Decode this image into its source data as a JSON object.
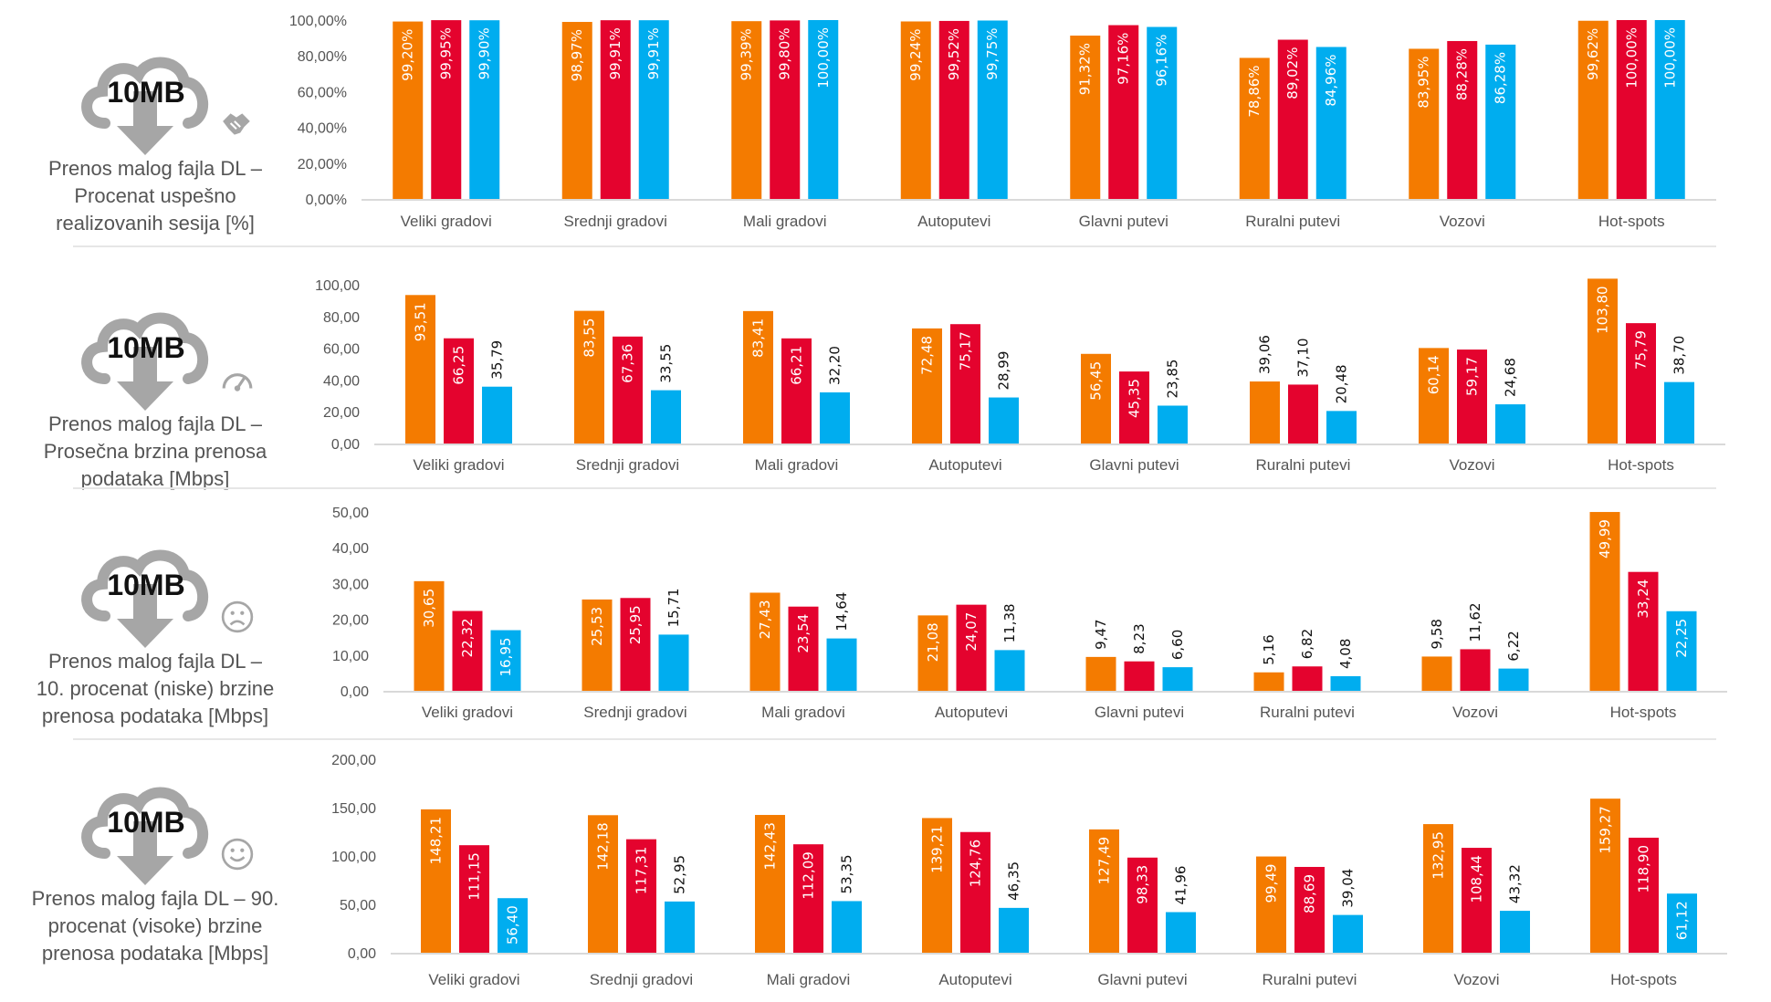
{
  "colors": {
    "series1": "#F47B00",
    "series2": "#E4032E",
    "series3": "#00ADEF",
    "axis": "#d9d9d9",
    "icon": "#a6a6a6"
  },
  "panels": [
    {
      "badge": "10MB",
      "icon": "handshake-icon",
      "lines": [
        "Prenos malog fajla DL –",
        "Procenat uspešno",
        "realizovanih sesija [%]"
      ]
    },
    {
      "badge": "10MB",
      "icon": "speedometer-icon",
      "lines": [
        "Prenos malog fajla DL –",
        "Prosečna brzina prenosa",
        "podataka [Mbps]"
      ]
    },
    {
      "badge": "10MB",
      "icon": "sad-face-icon",
      "lines": [
        "Prenos malog fajla DL –",
        "10. procenat (niske) brzine",
        "prenosa podataka [Mbps]"
      ]
    },
    {
      "badge": "10MB",
      "icon": "smiley-face-icon",
      "lines": [
        "Prenos malog fajla DL – 90.",
        "procenat (visoke) brzine",
        "prenosa podataka [Mbps]"
      ]
    }
  ],
  "chart_data": [
    {
      "type": "bar",
      "categories": [
        "Veliki gradovi",
        "Srednji gradovi",
        "Mali gradovi",
        "Autoputevi",
        "Glavni putevi",
        "Ruralni putevi",
        "Vozovi",
        "Hot-spots"
      ],
      "ylim": [
        0,
        100
      ],
      "yticks": [
        "0,00%",
        "20,00%",
        "40,00%",
        "60,00%",
        "80,00%",
        "100,00%"
      ],
      "value_suffix": "%",
      "series": [
        {
          "values": [
            99.2,
            98.97,
            99.39,
            99.24,
            91.32,
            78.86,
            83.95,
            99.62
          ]
        },
        {
          "values": [
            99.95,
            99.91,
            99.8,
            99.52,
            97.16,
            89.02,
            88.28,
            100.0
          ]
        },
        {
          "values": [
            99.9,
            99.91,
            100.0,
            99.75,
            96.16,
            84.96,
            86.28,
            100.0
          ]
        }
      ]
    },
    {
      "type": "bar",
      "categories": [
        "Veliki gradovi",
        "Srednji gradovi",
        "Mali gradovi",
        "Autoputevi",
        "Glavni putevi",
        "Ruralni putevi",
        "Vozovi",
        "Hot-spots"
      ],
      "ylim": [
        0,
        100
      ],
      "yticks": [
        "0,00",
        "20,00",
        "40,00",
        "60,00",
        "80,00",
        "100,00"
      ],
      "value_suffix": "",
      "series": [
        {
          "values": [
            93.51,
            83.55,
            83.41,
            72.48,
            56.45,
            39.06,
            60.14,
            103.8
          ]
        },
        {
          "values": [
            66.25,
            67.36,
            66.21,
            75.17,
            45.35,
            37.1,
            59.17,
            75.79
          ]
        },
        {
          "values": [
            35.79,
            33.55,
            32.2,
            28.99,
            23.85,
            20.48,
            24.68,
            38.7
          ]
        }
      ]
    },
    {
      "type": "bar",
      "categories": [
        "Veliki gradovi",
        "Srednji gradovi",
        "Mali gradovi",
        "Autoputevi",
        "Glavni putevi",
        "Ruralni putevi",
        "Vozovi",
        "Hot-spots"
      ],
      "ylim": [
        0,
        50
      ],
      "yticks": [
        "0,00",
        "10,00",
        "20,00",
        "30,00",
        "40,00",
        "50,00"
      ],
      "value_suffix": "",
      "series": [
        {
          "values": [
            30.65,
            25.53,
            27.43,
            21.08,
            9.47,
            5.16,
            9.58,
            49.99
          ]
        },
        {
          "values": [
            22.32,
            25.95,
            23.54,
            24.07,
            8.23,
            6.82,
            11.62,
            33.24
          ]
        },
        {
          "values": [
            16.95,
            15.71,
            14.64,
            11.38,
            6.6,
            4.08,
            6.22,
            22.25
          ]
        }
      ]
    },
    {
      "type": "bar",
      "categories": [
        "Veliki gradovi",
        "Srednji gradovi",
        "Mali gradovi",
        "Autoputevi",
        "Glavni putevi",
        "Ruralni putevi",
        "Vozovi",
        "Hot-spots"
      ],
      "ylim": [
        0,
        200
      ],
      "yticks": [
        "0,00",
        "50,00",
        "100,00",
        "150,00",
        "200,00"
      ],
      "value_suffix": "",
      "series": [
        {
          "values": [
            148.21,
            142.18,
            142.43,
            139.21,
            127.49,
            99.49,
            132.95,
            159.27
          ]
        },
        {
          "values": [
            111.15,
            117.31,
            112.09,
            124.76,
            98.33,
            88.69,
            108.44,
            118.9
          ]
        },
        {
          "values": [
            56.4,
            52.95,
            53.35,
            46.35,
            41.96,
            39.04,
            43.32,
            61.12
          ]
        }
      ]
    }
  ]
}
